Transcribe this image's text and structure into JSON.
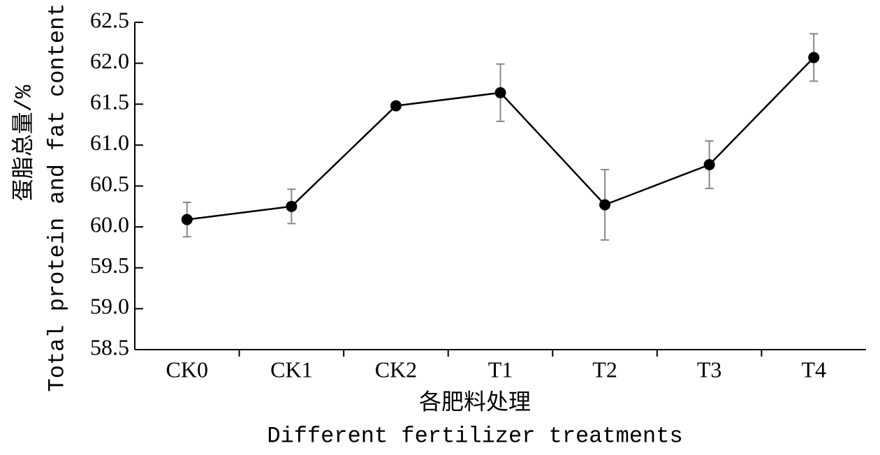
{
  "chart_data": {
    "type": "line",
    "x_label": [
      "各肥料处理",
      "Different fertilizer treatments"
    ],
    "y_label": [
      "蛋脂总量/%",
      "Total protein and fat content"
    ],
    "categories": [
      "CK0",
      "CK1",
      "CK2",
      "T1",
      "T2",
      "T3",
      "T4"
    ],
    "values": [
      60.09,
      60.25,
      61.48,
      61.64,
      60.27,
      60.76,
      62.07
    ],
    "errors": [
      0.21,
      0.21,
      0.03,
      0.35,
      0.43,
      0.29,
      0.29
    ],
    "color": "#000000",
    "ylim": [
      58.5,
      62.5
    ],
    "yticks": [
      58.5,
      {
        "value": 59,
        "label": "59.0"
      },
      59.5,
      {
        "value": 60,
        "label": "60.0"
      },
      60.5,
      {
        "value": 61,
        "label": "61.0"
      },
      61.5,
      {
        "value": 62,
        "label": "62.0"
      },
      62.5
    ],
    "grid": false
  }
}
